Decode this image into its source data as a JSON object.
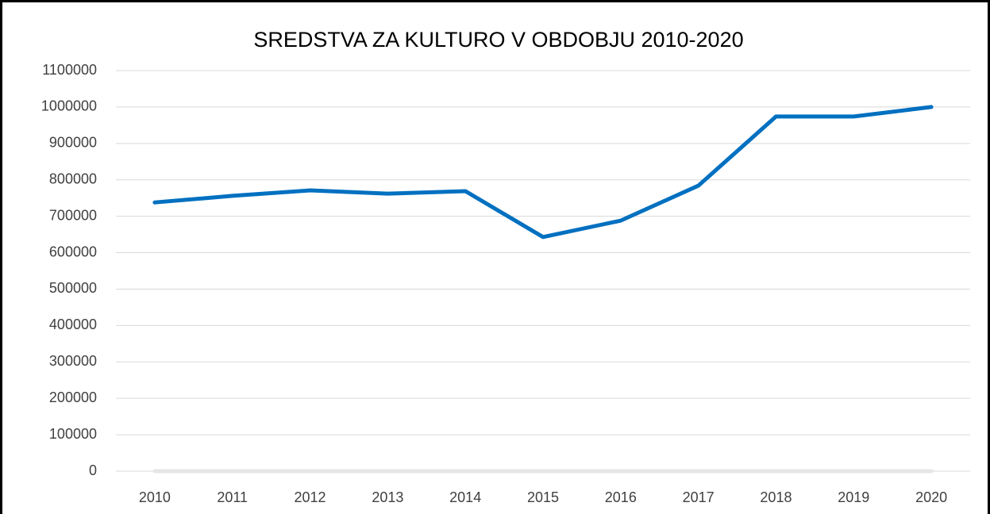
{
  "chart_data": {
    "type": "line",
    "title": "SREDSTVA ZA KULTURO V OBDOBJU 2010-2020",
    "categories": [
      "2010",
      "2011",
      "2012",
      "2013",
      "2014",
      "2015",
      "2016",
      "2017",
      "2018",
      "2019",
      "2020"
    ],
    "series": [
      {
        "color": "#0070c0",
        "values": [
          738000,
          756000,
          771000,
          762000,
          769000,
          643000,
          688000,
          784000,
          974000,
          974000,
          1000000
        ]
      },
      {
        "color": "#e7e6e6",
        "values": [
          0,
          0,
          0,
          0,
          0,
          0,
          0,
          0,
          0,
          0,
          0
        ]
      }
    ],
    "ylim": [
      0,
      1100000
    ],
    "yticks": [
      0,
      100000,
      200000,
      300000,
      400000,
      500000,
      600000,
      700000,
      800000,
      900000,
      1000000,
      1100000
    ],
    "grid": true
  }
}
